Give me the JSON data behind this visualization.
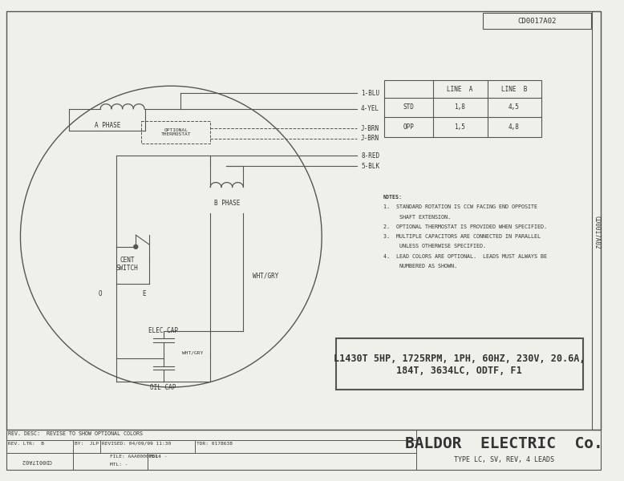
{
  "title": "CD0017A02",
  "bg_color": "#f0f0eb",
  "line_color": "#555555",
  "text_color": "#333333",
  "table_data": {
    "headers": [
      "",
      "LINE A",
      "LINE B"
    ],
    "rows": [
      [
        "STD",
        "1,8",
        "4,5"
      ],
      [
        "OPP",
        "1,5",
        "4,8"
      ]
    ]
  },
  "notes": [
    "NOTES:",
    "1.  STANDARD ROTATION IS CCW FACING END OPPOSITE",
    "     SHAFT EXTENSION.",
    "2.  OPTIONAL THERMOSTAT IS PROVIDED WHEN SPECIFIED.",
    "3.  MULTIPLE CAPACITORS ARE CONNECTED IN PARALLEL",
    "     UNLESS OTHERWISE SPECIFIED.",
    "4.  LEAD COLORS ARE OPTIONAL.  LEADS MUST ALWAYS BE",
    "     NUMBERED AS SHOWN."
  ],
  "spec_box_text": "L1430T 5HP, 1725RPM, 1PH, 60HZ, 230V, 20.6A,\n184T, 3634LC, ODTF, F1",
  "footer_left_top": "REV. DESC:  REVISE TO SHOW OPTIONAL COLORS",
  "footer_company": "BALDOR  ELECTRIC  Co.",
  "footer_type": "TYPE LC, SV, REV, 4 LEADS",
  "side_text": "CD0017A02",
  "component_labels": {
    "a_phase": "A PHASE",
    "optional_thermostat": "OPTIONAL\nTHERMOSTAT",
    "b_phase": "B PHASE",
    "cent_switch": "CENT\nSWITCH",
    "wht_gry1": "WHT/GRY",
    "wht_gry2": "WHT/GRY",
    "elec_cap": "ELEC CAP",
    "oil_cap": "OIL CAP",
    "o_label": "O",
    "e_label": "E"
  }
}
